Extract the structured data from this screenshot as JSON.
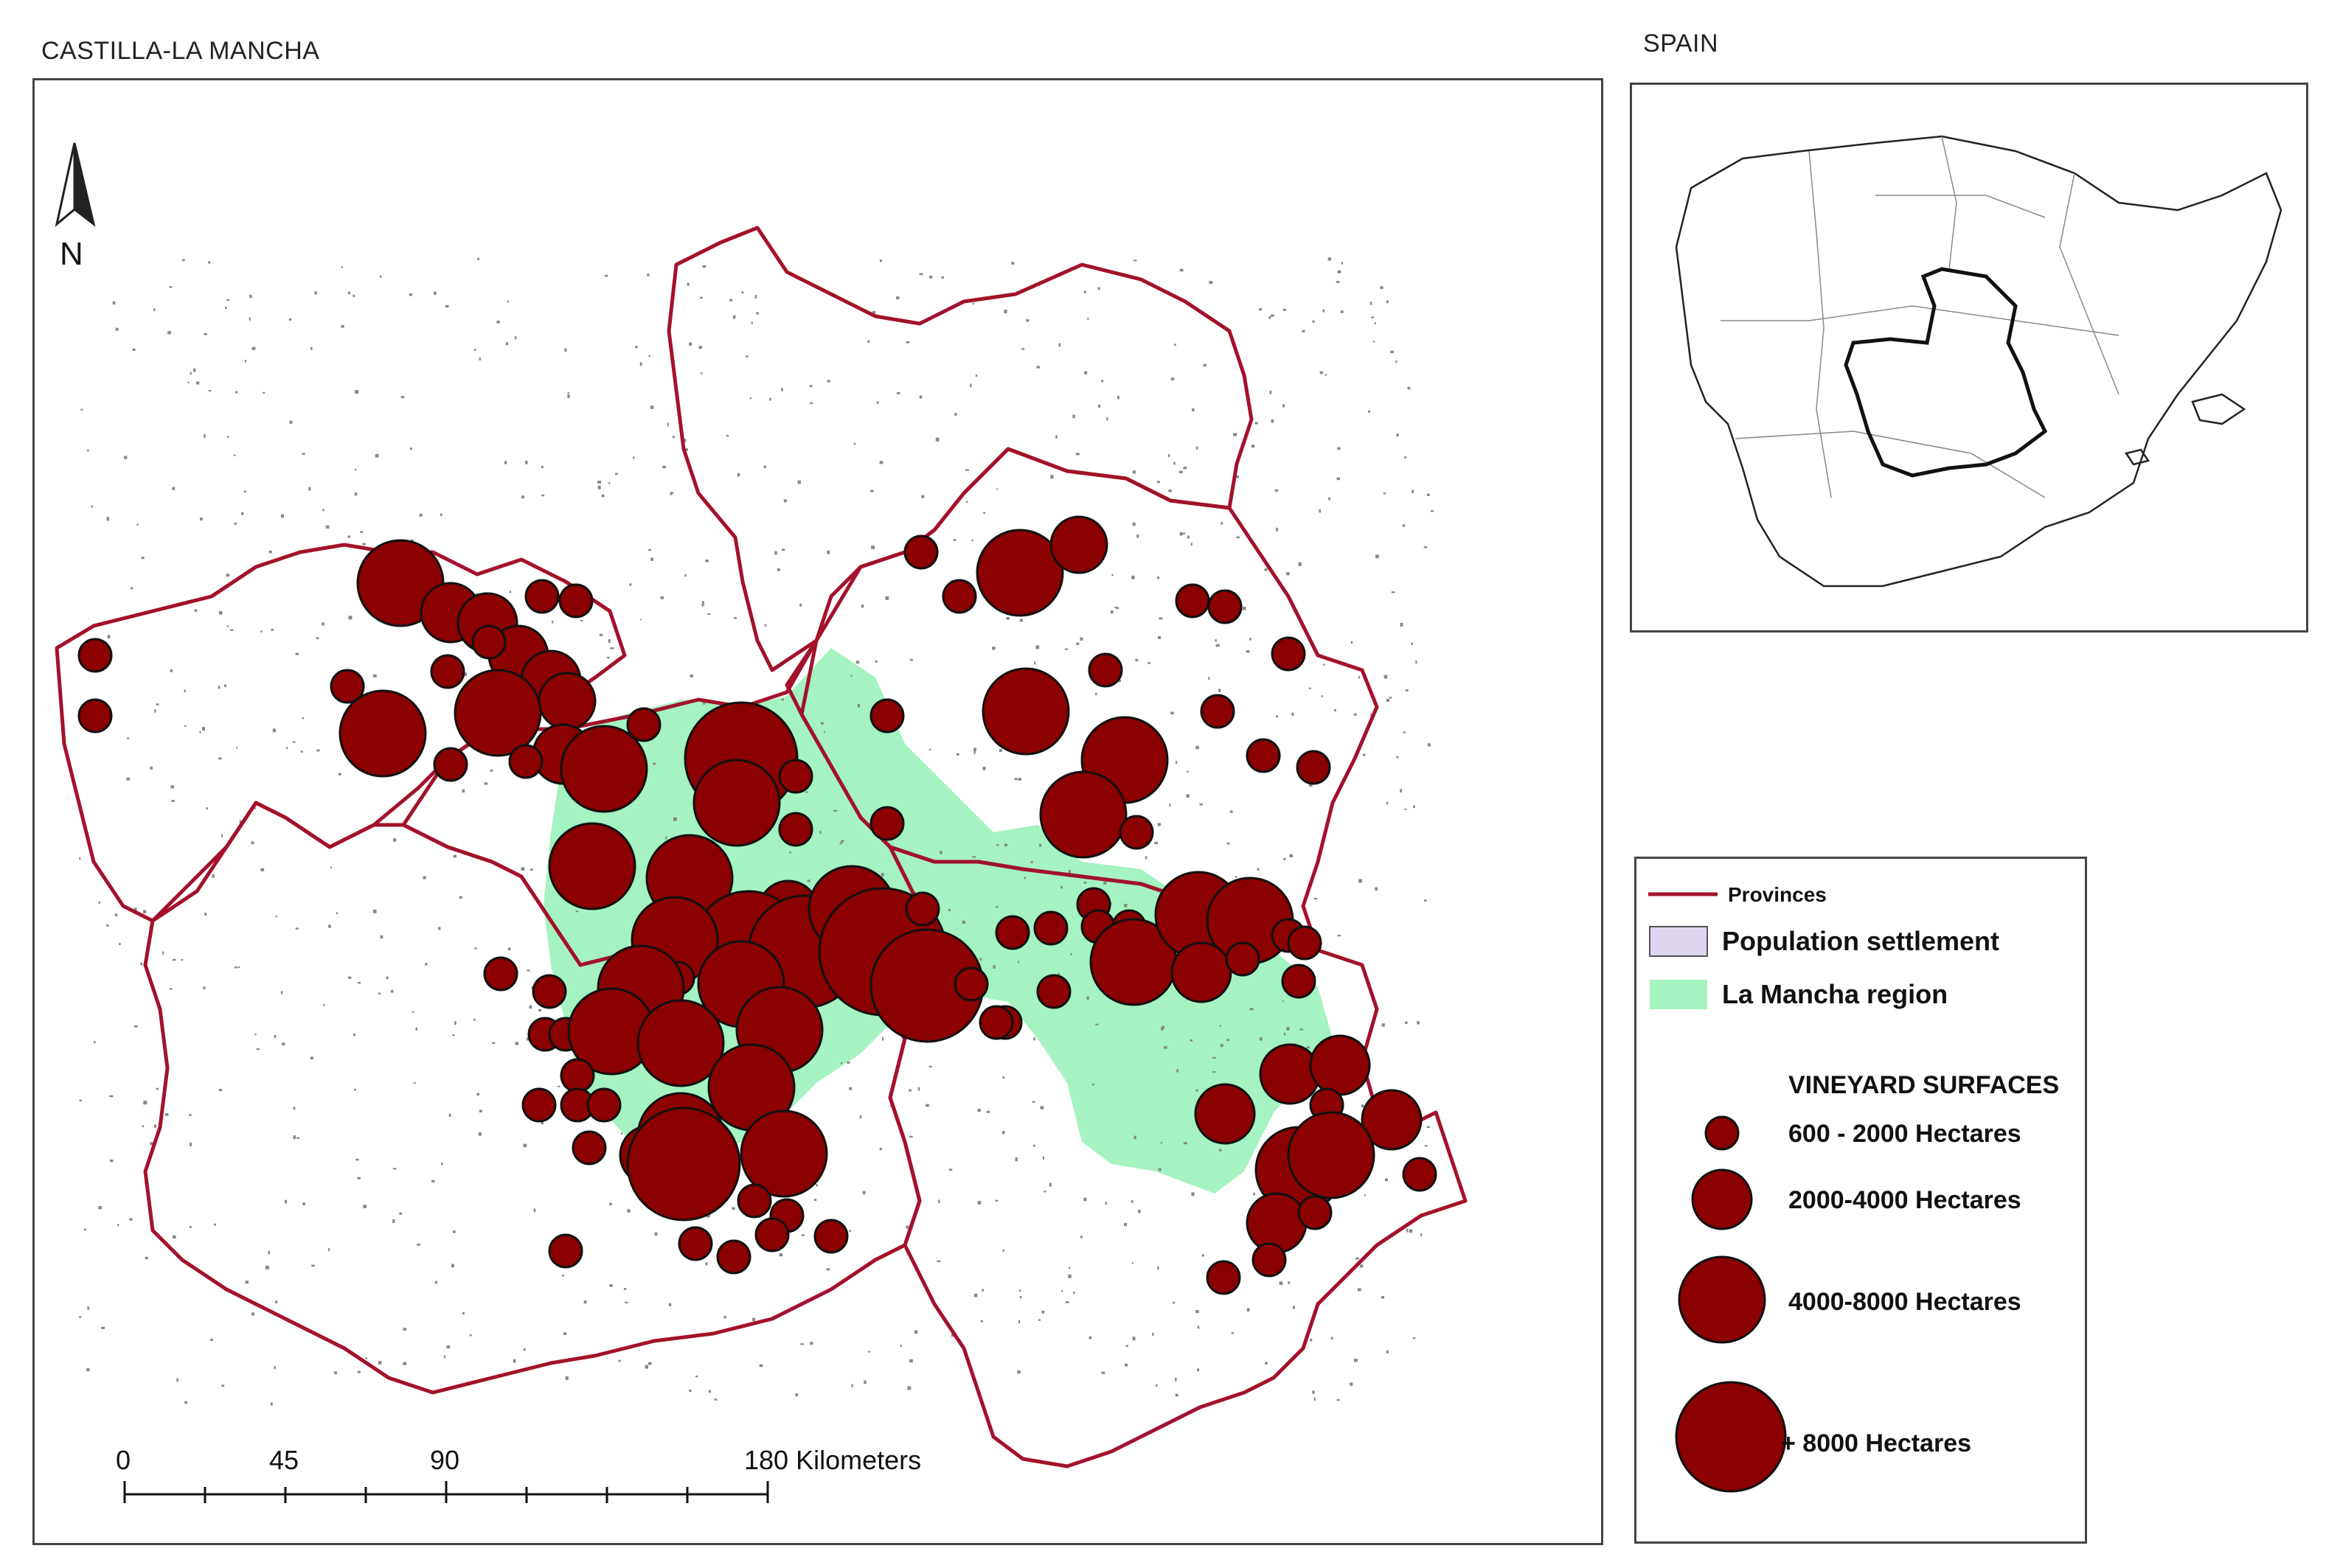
{
  "main_title": "CASTILLA-LA MANCHA",
  "inset_title": "SPAIN",
  "north_label": "N",
  "scale_bar": {
    "labels": [
      "0",
      "45",
      "90",
      "180 Kilometers"
    ]
  },
  "legend": {
    "provinces": "Provinces",
    "population": "Population settlement",
    "mancha": "La Mancha region",
    "vineyard_title": "VINEYARD SURFACES",
    "classes": [
      "600 - 2000 Hectares",
      "2000-4000 Hectares",
      "4000-8000 Hectares",
      "+ 8000 Hectares"
    ]
  },
  "colors": {
    "province_border": "#a3122a",
    "mancha_fill": "#a5f3c0",
    "settlement_fill": "#ddd5f0",
    "vineyard_fill": "#8b0000"
  }
}
